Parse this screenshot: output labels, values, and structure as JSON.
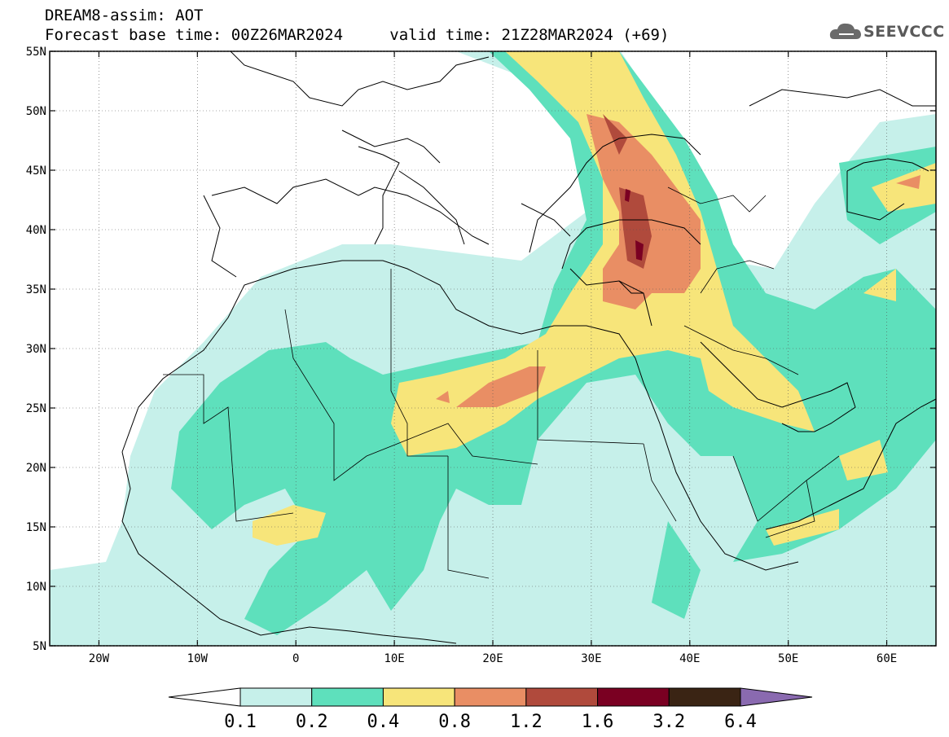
{
  "title": {
    "line1": "DREAM8-assim: AOT",
    "base_time": "Forecast base time: 00Z26MAR2024",
    "valid_time": "valid time: 21Z28MAR2024 (+69)"
  },
  "logo": {
    "text": "SEEVCCC",
    "icon": "cloud-icon"
  },
  "map": {
    "lon_range": [
      -25,
      65
    ],
    "lat_range": [
      5,
      55
    ],
    "lon_ticks": [
      {
        "value": -20,
        "label": "20W"
      },
      {
        "value": -10,
        "label": "10W"
      },
      {
        "value": 0,
        "label": "0"
      },
      {
        "value": 10,
        "label": "10E"
      },
      {
        "value": 20,
        "label": "20E"
      },
      {
        "value": 30,
        "label": "30E"
      },
      {
        "value": 40,
        "label": "40E"
      },
      {
        "value": 50,
        "label": "50E"
      },
      {
        "value": 60,
        "label": "60E"
      }
    ],
    "lat_ticks": [
      {
        "value": 55,
        "label": "55N"
      },
      {
        "value": 50,
        "label": "50N"
      },
      {
        "value": 45,
        "label": "45N"
      },
      {
        "value": 40,
        "label": "40N"
      },
      {
        "value": 35,
        "label": "35N"
      },
      {
        "value": 30,
        "label": "30N"
      },
      {
        "value": 25,
        "label": "25N"
      },
      {
        "value": 20,
        "label": "20N"
      },
      {
        "value": 15,
        "label": "15N"
      },
      {
        "value": 10,
        "label": "10N"
      },
      {
        "value": 5,
        "label": "5N"
      }
    ],
    "grid": true
  },
  "colorbar": {
    "colors": [
      "#ffffff",
      "#c6f0ea",
      "#5ee0bc",
      "#f7e57a",
      "#e98e64",
      "#b04a3c",
      "#7a0022",
      "#3a2414",
      "#8a6ab0"
    ],
    "labels": [
      "0.1",
      "0.2",
      "0.4",
      "0.8",
      "1.2",
      "1.6",
      "3.2",
      "6.4"
    ]
  }
}
